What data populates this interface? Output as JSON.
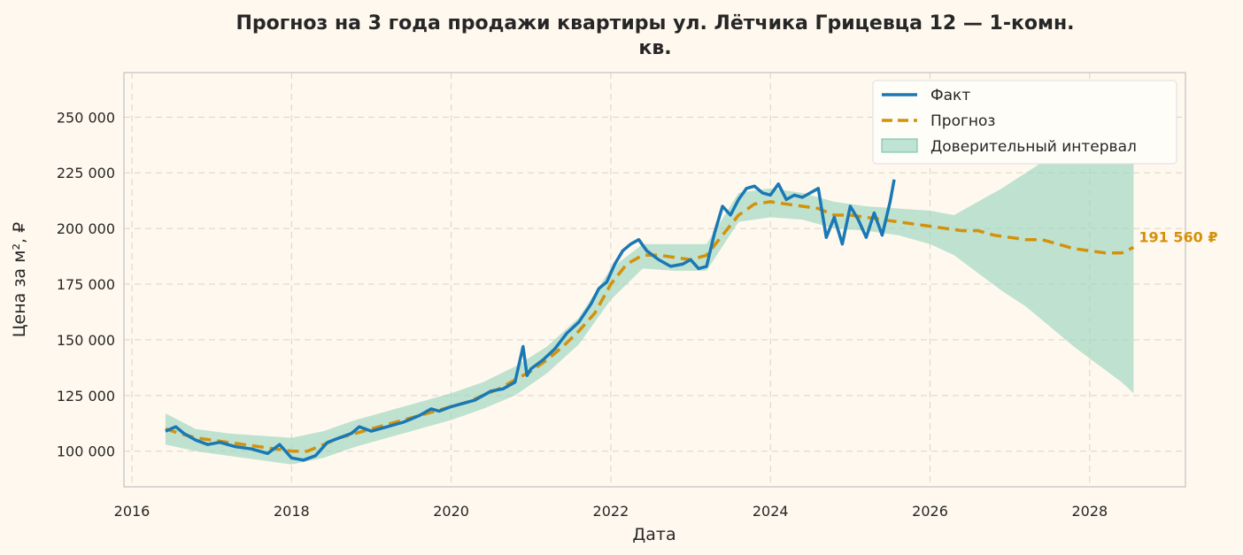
{
  "chart_data": {
    "type": "line",
    "title_lines": [
      "Прогноз на 3 года продажи квартиры  ул. Лётчика Грицевца 12 — 1-комн.",
      "кв."
    ],
    "xlabel": "Дата",
    "ylabel": "Цена за м², ₽",
    "xlim": [
      2015.9,
      2029.2
    ],
    "ylim": [
      84000,
      270000
    ],
    "x_ticks": [
      2016,
      2018,
      2020,
      2022,
      2024,
      2026,
      2028
    ],
    "x_tick_labels": [
      "2016",
      "2018",
      "2020",
      "2022",
      "2024",
      "2026",
      "2028"
    ],
    "y_ticks": [
      100000,
      125000,
      150000,
      175000,
      200000,
      225000,
      250000
    ],
    "y_tick_labels": [
      "100 000",
      "125 000",
      "150 000",
      "175 000",
      "200 000",
      "225 000",
      "250 000"
    ],
    "grid": true,
    "legend_position": "top-right",
    "colors": {
      "fact": "#1a78b4",
      "forecast": "#d4910a",
      "interval": "#9dd6c0",
      "interval_edge": "#2e9d75",
      "background": "#fff8ee",
      "plot_border": "#cccccc"
    },
    "series": [
      {
        "name": "Факт",
        "style": "solid",
        "x": [
          2016.42,
          2016.55,
          2016.65,
          2016.8,
          2016.95,
          2017.1,
          2017.3,
          2017.5,
          2017.7,
          2017.85,
          2018.0,
          2018.15,
          2018.3,
          2018.45,
          2018.6,
          2018.75,
          2018.85,
          2019.0,
          2019.2,
          2019.4,
          2019.6,
          2019.75,
          2019.85,
          2020.0,
          2020.2,
          2020.3,
          2020.4,
          2020.5,
          2020.65,
          2020.8,
          2020.9,
          2020.95,
          2021.0,
          2021.15,
          2021.3,
          2021.45,
          2021.6,
          2021.75,
          2021.85,
          2021.95,
          2022.05,
          2022.15,
          2022.25,
          2022.35,
          2022.45,
          2022.6,
          2022.75,
          2022.9,
          2023.0,
          2023.1,
          2023.2,
          2023.3,
          2023.4,
          2023.5,
          2023.6,
          2023.7,
          2023.8,
          2023.9,
          2024.0,
          2024.1,
          2024.2,
          2024.3,
          2024.4,
          2024.5,
          2024.6,
          2024.7,
          2024.8,
          2024.9,
          2025.0,
          2025.1,
          2025.2,
          2025.3,
          2025.4,
          2025.5,
          2025.55
        ],
        "values": [
          109000,
          111000,
          108000,
          105000,
          103000,
          104000,
          102000,
          101000,
          99000,
          103000,
          97000,
          96000,
          98000,
          104000,
          106000,
          108000,
          111000,
          109000,
          111000,
          113000,
          116000,
          119000,
          118000,
          120000,
          122000,
          123000,
          125000,
          127000,
          128000,
          131000,
          147000,
          134000,
          137000,
          141000,
          146000,
          153000,
          158000,
          166000,
          173000,
          176000,
          184000,
          190000,
          193000,
          195000,
          190000,
          186000,
          183000,
          184000,
          186000,
          182000,
          183000,
          198000,
          210000,
          206000,
          213000,
          218000,
          219000,
          216000,
          215000,
          220000,
          213000,
          215000,
          214000,
          216000,
          218000,
          196000,
          205000,
          193000,
          210000,
          204000,
          196000,
          207000,
          197000,
          212000,
          222000
        ]
      },
      {
        "name": "Прогноз",
        "style": "dashed",
        "x": [
          2016.42,
          2016.6,
          2016.8,
          2017.0,
          2017.2,
          2017.4,
          2017.6,
          2017.8,
          2018.0,
          2018.2,
          2018.4,
          2018.6,
          2018.8,
          2019.0,
          2019.2,
          2019.4,
          2019.6,
          2019.8,
          2020.0,
          2020.2,
          2020.4,
          2020.6,
          2020.8,
          2021.0,
          2021.2,
          2021.4,
          2021.6,
          2021.8,
          2022.0,
          2022.2,
          2022.4,
          2022.6,
          2022.8,
          2023.0,
          2023.2,
          2023.4,
          2023.6,
          2023.8,
          2024.0,
          2024.2,
          2024.4,
          2024.6,
          2024.8,
          2025.0,
          2025.2,
          2025.4,
          2025.6,
          2025.8,
          2026.0,
          2026.2,
          2026.4,
          2026.6,
          2026.8,
          2027.0,
          2027.2,
          2027.4,
          2027.6,
          2027.8,
          2028.0,
          2028.2,
          2028.4,
          2028.55
        ],
        "values": [
          110000,
          108000,
          106000,
          105000,
          104000,
          103000,
          102000,
          101000,
          100000,
          100000,
          103000,
          106000,
          108000,
          110000,
          112000,
          114000,
          116000,
          118000,
          120000,
          122000,
          125000,
          128000,
          132000,
          136000,
          141000,
          147000,
          154000,
          162000,
          175000,
          184000,
          188000,
          188000,
          187000,
          186000,
          188000,
          197000,
          206000,
          211000,
          212000,
          211000,
          210000,
          209000,
          206000,
          206000,
          205000,
          204000,
          203000,
          202000,
          201000,
          200000,
          199000,
          199000,
          197000,
          196000,
          195000,
          195000,
          193000,
          191000,
          190000,
          189000,
          189000,
          191560
        ]
      }
    ],
    "interval": {
      "name": "Доверительный интервал",
      "x": [
        2016.42,
        2016.8,
        2017.2,
        2017.6,
        2018.0,
        2018.4,
        2018.8,
        2019.2,
        2019.6,
        2020.0,
        2020.4,
        2020.8,
        2021.2,
        2021.6,
        2022.0,
        2022.4,
        2022.8,
        2023.2,
        2023.6,
        2024.0,
        2024.4,
        2024.8,
        2025.2,
        2025.6,
        2026.0,
        2026.3,
        2026.6,
        2026.9,
        2027.2,
        2027.5,
        2027.8,
        2028.1,
        2028.4,
        2028.55
      ],
      "upper": [
        117000,
        110000,
        108000,
        107000,
        106000,
        109000,
        114000,
        118000,
        122000,
        126000,
        131000,
        138000,
        147000,
        160000,
        182000,
        193000,
        193000,
        193000,
        216000,
        218000,
        216000,
        212000,
        210000,
        209000,
        208000,
        206000,
        212000,
        218000,
        225000,
        232000,
        238000,
        245000,
        255000,
        261000
      ],
      "lower": [
        103000,
        100000,
        98000,
        96000,
        94000,
        97000,
        102000,
        106000,
        110000,
        114000,
        119000,
        125000,
        135000,
        148000,
        168000,
        182000,
        181000,
        181000,
        203000,
        205000,
        204000,
        200000,
        199000,
        197000,
        193000,
        188000,
        180000,
        172000,
        165000,
        156000,
        147000,
        139000,
        131000,
        126000
      ]
    },
    "end_label": "191 560 ₽",
    "end_label_value": 191560,
    "end_label_x": 2028.55
  }
}
